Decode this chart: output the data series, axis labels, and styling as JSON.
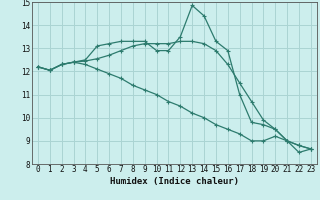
{
  "xlabel": "Humidex (Indice chaleur)",
  "background_color": "#cceeed",
  "grid_color": "#aad4d3",
  "line_color": "#2d7b6e",
  "x": [
    0,
    1,
    2,
    3,
    4,
    5,
    6,
    7,
    8,
    9,
    10,
    11,
    12,
    13,
    14,
    15,
    16,
    17,
    18,
    19,
    20,
    21,
    22,
    23
  ],
  "line1": [
    12.2,
    12.05,
    12.3,
    12.4,
    12.5,
    13.1,
    13.2,
    13.3,
    13.3,
    13.3,
    12.9,
    12.9,
    13.5,
    14.85,
    14.4,
    13.3,
    12.9,
    11.0,
    9.8,
    9.7,
    9.5,
    9.0,
    8.5,
    8.65
  ],
  "line2": [
    12.2,
    12.05,
    12.3,
    12.4,
    12.45,
    12.55,
    12.7,
    12.9,
    13.1,
    13.2,
    13.2,
    13.2,
    13.3,
    13.3,
    13.2,
    12.9,
    12.3,
    11.5,
    10.7,
    9.9,
    9.5,
    9.0,
    8.8,
    8.65
  ],
  "line3": [
    12.2,
    12.05,
    12.3,
    12.4,
    12.3,
    12.1,
    11.9,
    11.7,
    11.4,
    11.2,
    11.0,
    10.7,
    10.5,
    10.2,
    10.0,
    9.7,
    9.5,
    9.3,
    9.0,
    9.0,
    9.2,
    9.0,
    8.8,
    8.65
  ],
  "ylim": [
    8,
    15
  ],
  "xlim": [
    -0.5,
    23.5
  ],
  "yticks": [
    8,
    9,
    10,
    11,
    12,
    13,
    14,
    15
  ],
  "xticks": [
    0,
    1,
    2,
    3,
    4,
    5,
    6,
    7,
    8,
    9,
    10,
    11,
    12,
    13,
    14,
    15,
    16,
    17,
    18,
    19,
    20,
    21,
    22,
    23
  ]
}
